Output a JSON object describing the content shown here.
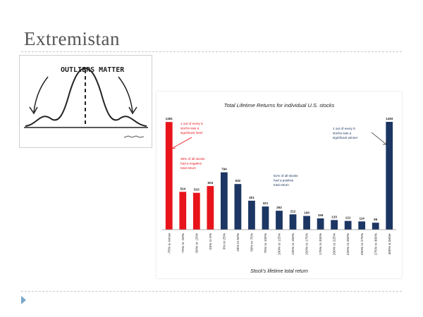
{
  "slide": {
    "title": "Extremistan"
  },
  "sketch": {
    "caption": "OUTLIERS MATTER"
  },
  "colors": {
    "loser": "#e8141c",
    "winner": "#1c3663",
    "title": "#555555"
  },
  "chart_data": {
    "type": "bar",
    "title": "Total Lifetime Returns for individual U.S. stocks",
    "xlabel": "Stock's lifetime total return",
    "ylabel": "",
    "categories": [
      "-75% & worse",
      "-75% to -50%",
      "-50% to -25%",
      "-25% to 0%",
      "0% to 25%",
      "25% to 50%",
      "50% to 75%",
      "75% to 100%",
      "100% to 125%",
      "125% to 150%",
      "150% to 175%",
      "175% to 200%",
      "200% to 225%",
      "225% to 250%",
      "250% to 275%",
      "275% to 300%",
      "300% & better"
    ],
    "values": [
      1491,
      524,
      510,
      604,
      794,
      632,
      401,
      321,
      262,
      212,
      190,
      156,
      133,
      121,
      114,
      96,
      1493
    ],
    "ylim": [
      0,
      1600
    ],
    "grid": false,
    "legend": "none",
    "annotations": {
      "left_callout": [
        "1 out of every 5",
        "stocks was a",
        "significant loser"
      ],
      "negative_note": [
        "39% of all stocks",
        "had a negative",
        "total return"
      ],
      "positive_note": [
        "61% of all stocks",
        "had a positive",
        "total return"
      ],
      "right_callout": [
        "1 out of every 5",
        "stocks was a",
        "significant  winner"
      ]
    }
  }
}
